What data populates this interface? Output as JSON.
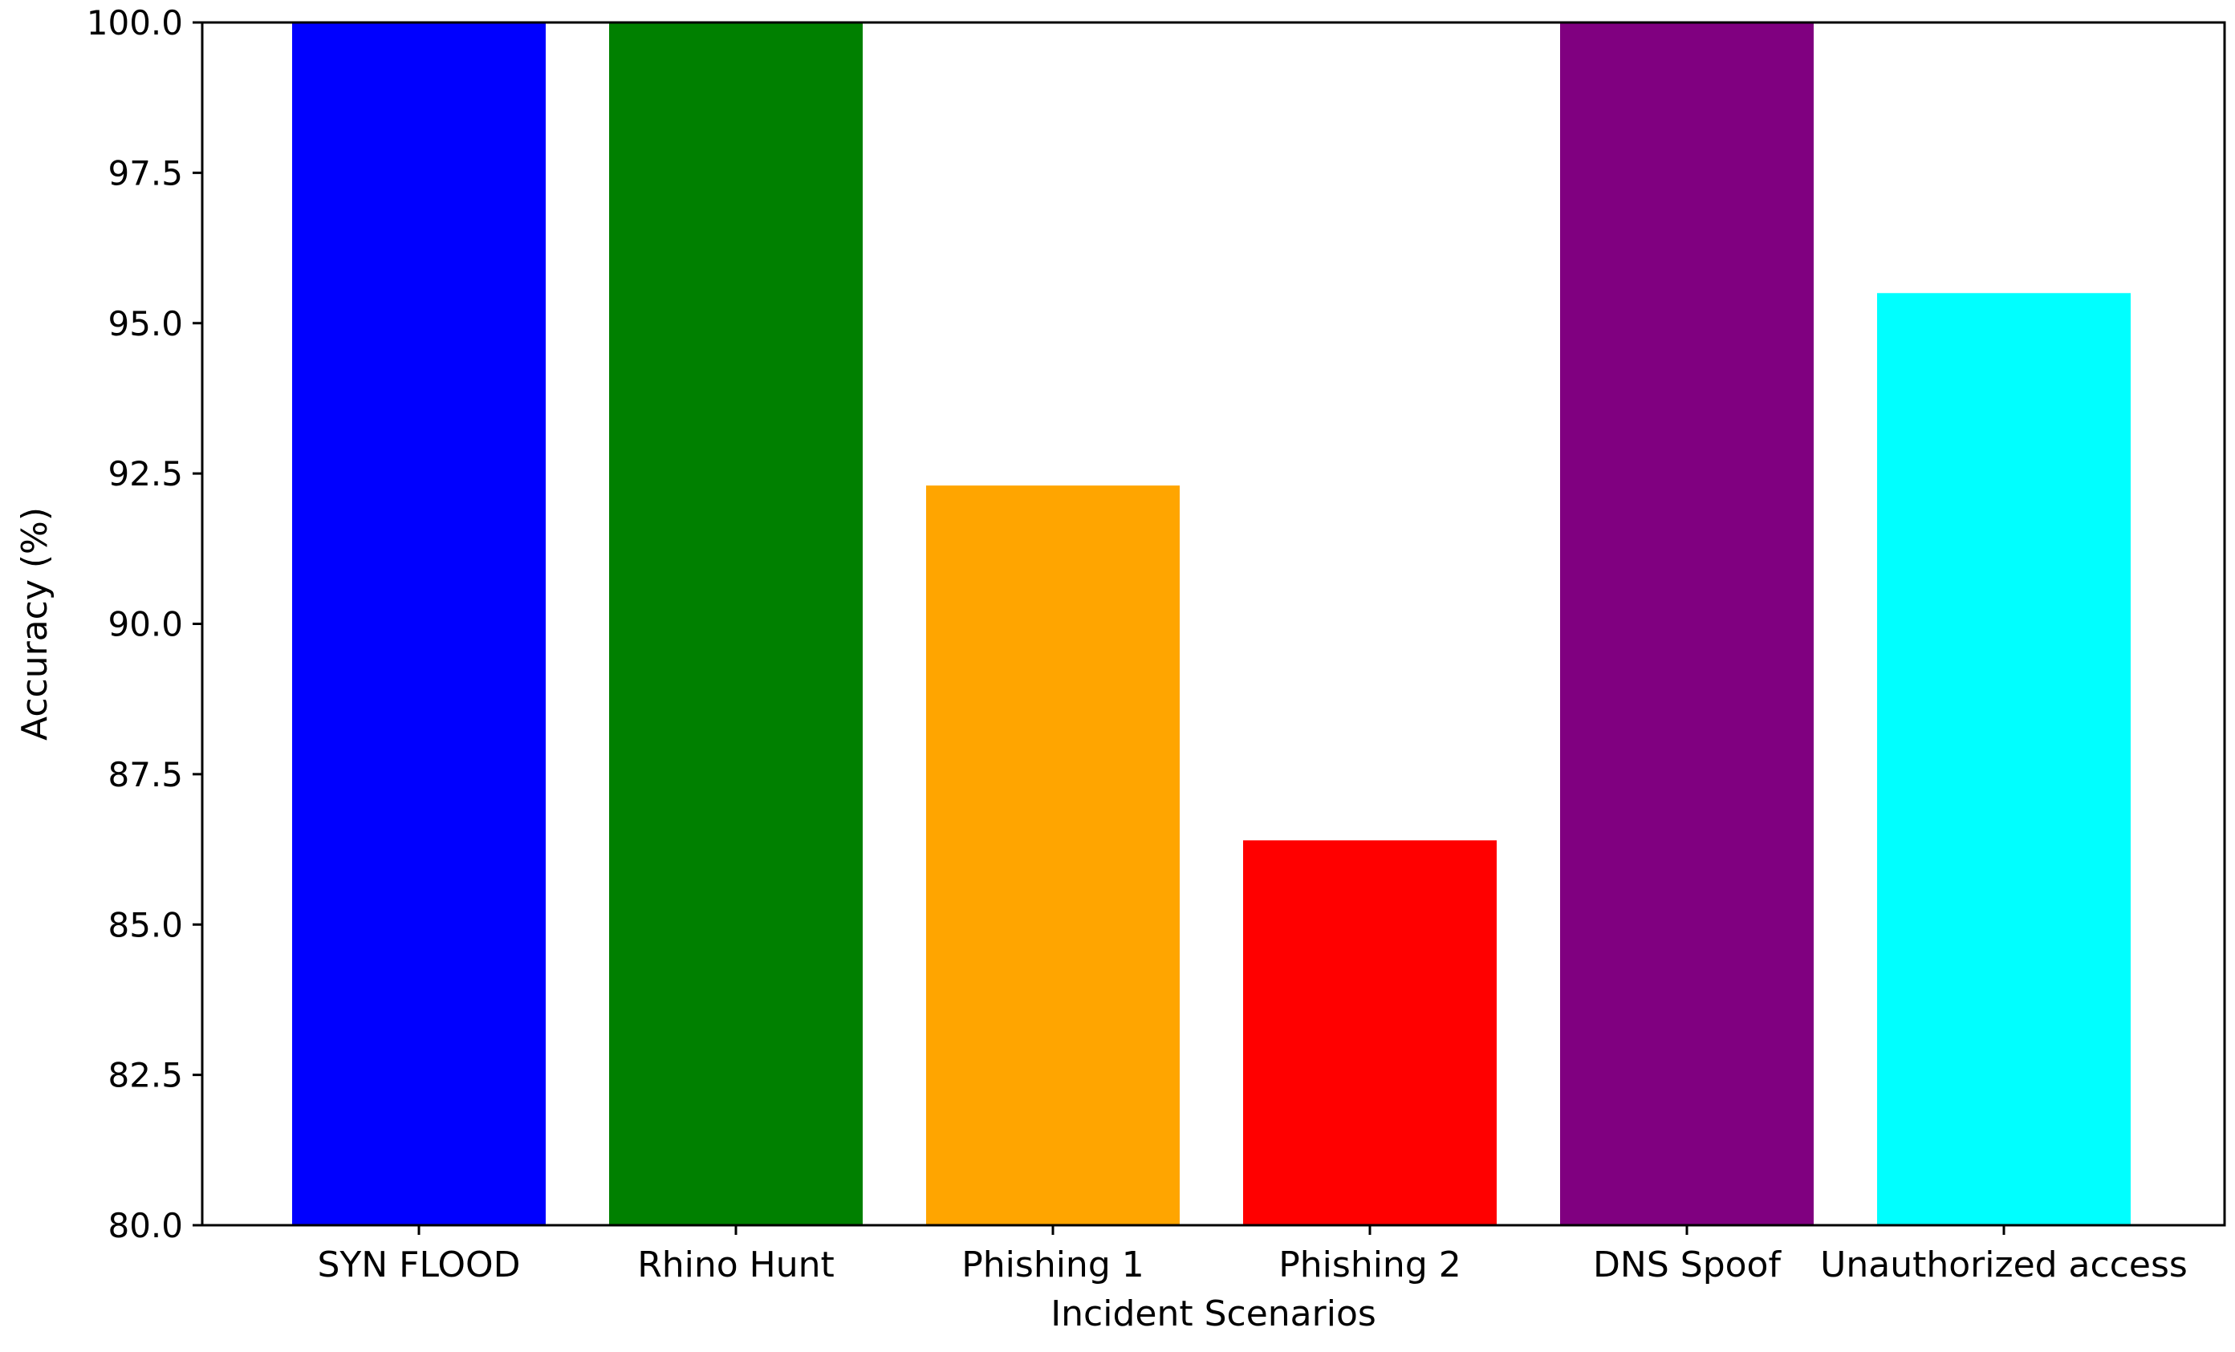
{
  "chart_data": {
    "type": "bar",
    "title": "",
    "xlabel": "Incident Scenarios",
    "ylabel": "Accuracy (%)",
    "ylim": [
      80,
      100
    ],
    "yticks": [
      "80.0",
      "82.5",
      "85.0",
      "87.5",
      "90.0",
      "92.5",
      "95.0",
      "97.5",
      "100.0"
    ],
    "categories": [
      "SYN FLOOD",
      "Rhino Hunt",
      "Phishing 1",
      "Phishing 2",
      "DNS Spoof",
      "Unauthorized access"
    ],
    "values": [
      100.0,
      100.0,
      92.3,
      86.4,
      100.0,
      95.5
    ],
    "colors": [
      "#0000ff",
      "#008000",
      "#ffa500",
      "#ff0000",
      "#800080",
      "#00ffff"
    ],
    "grid": false,
    "legend": "none"
  }
}
